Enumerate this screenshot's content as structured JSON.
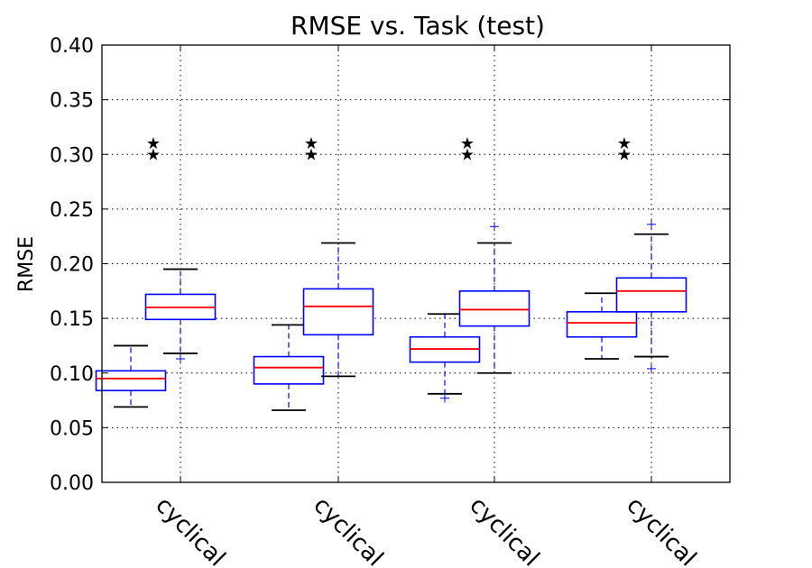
{
  "chart_data": {
    "type": "boxplot",
    "title": "RMSE vs. Task (test)",
    "xlabel": "",
    "ylabel": "RMSE",
    "ylim": [
      0,
      0.4
    ],
    "yticks": [
      "0.00",
      "0.05",
      "0.10",
      "0.15",
      "0.20",
      "0.25",
      "0.30",
      "0.35",
      "0.40"
    ],
    "grid": true,
    "categories": [
      "cyclical",
      "cyclical",
      "cyclical",
      "cyclical"
    ],
    "groups": [
      {
        "label": "cyclical",
        "boxes": [
          {
            "whisker_low": 0.069,
            "q1": 0.084,
            "median": 0.095,
            "q3": 0.102,
            "whisker_high": 0.125,
            "fliers": []
          },
          {
            "whisker_low": 0.118,
            "q1": 0.149,
            "median": 0.16,
            "q3": 0.172,
            "whisker_high": 0.195,
            "fliers": [
              0.113
            ]
          }
        ],
        "stars": [
          0.3,
          0.31
        ]
      },
      {
        "label": "cyclical",
        "boxes": [
          {
            "whisker_low": 0.066,
            "q1": 0.09,
            "median": 0.105,
            "q3": 0.115,
            "whisker_high": 0.144,
            "fliers": []
          },
          {
            "whisker_low": 0.097,
            "q1": 0.135,
            "median": 0.161,
            "q3": 0.177,
            "whisker_high": 0.219,
            "fliers": []
          }
        ],
        "stars": [
          0.3,
          0.31
        ]
      },
      {
        "label": "cyclical",
        "boxes": [
          {
            "whisker_low": 0.081,
            "q1": 0.11,
            "median": 0.122,
            "q3": 0.133,
            "whisker_high": 0.154,
            "fliers": [
              0.077
            ]
          },
          {
            "whisker_low": 0.1,
            "q1": 0.143,
            "median": 0.158,
            "q3": 0.175,
            "whisker_high": 0.219,
            "fliers": [
              0.234
            ]
          }
        ],
        "stars": [
          0.3,
          0.31
        ]
      },
      {
        "label": "cyclical",
        "boxes": [
          {
            "whisker_low": 0.113,
            "q1": 0.133,
            "median": 0.146,
            "q3": 0.156,
            "whisker_high": 0.173,
            "fliers": []
          },
          {
            "whisker_low": 0.115,
            "q1": 0.156,
            "median": 0.175,
            "q3": 0.187,
            "whisker_high": 0.227,
            "fliers": [
              0.104,
              0.236
            ]
          }
        ],
        "stars": [
          0.3,
          0.31
        ]
      }
    ],
    "colors": {
      "box": "#0000ff",
      "median": "#ff0000",
      "whisker_cap": "#000000",
      "star": "#000000",
      "grid": "#000000"
    }
  }
}
